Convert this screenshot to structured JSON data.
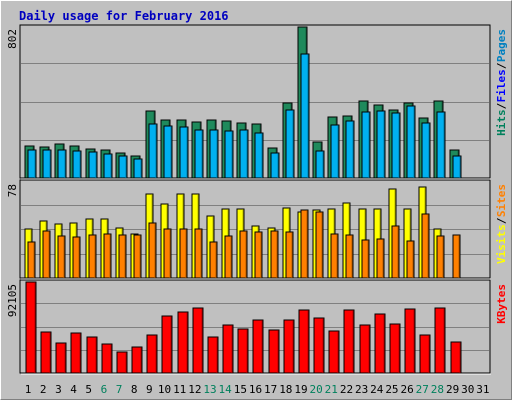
{
  "chart_data": [
    {
      "type": "bar",
      "title": "Daily usage for February 2016",
      "ymax_label": "802",
      "ylim": [
        0,
        802
      ],
      "grid": true,
      "legend_position": "right",
      "legend": [
        {
          "label": "Pages",
          "color": "#0080c0"
        },
        {
          "label": "/",
          "color": "#000000"
        },
        {
          "label": "Files",
          "color": "#0000ff"
        },
        {
          "label": "/",
          "color": "#000000"
        },
        {
          "label": "Hits",
          "color": "#00805c"
        }
      ],
      "series": [
        {
          "name": "Hits",
          "color": "#1f8a5c",
          "values": [
            170,
            165,
            180,
            170,
            155,
            150,
            135,
            115,
            355,
            310,
            310,
            300,
            310,
            305,
            290,
            285,
            160,
            400,
            802,
            190,
            325,
            330,
            410,
            390,
            360,
            400,
            320,
            410,
            150,
            null,
            null
          ]
        },
        {
          "name": "Pages",
          "color": "#00b0f0",
          "values": [
            150,
            148,
            148,
            145,
            138,
            125,
            116,
            100,
            285,
            275,
            270,
            255,
            255,
            250,
            255,
            240,
            135,
            360,
            660,
            145,
            280,
            305,
            350,
            355,
            345,
            380,
            290,
            350,
            115,
            null,
            null
          ]
        }
      ]
    },
    {
      "type": "bar",
      "ymax_label": "78",
      "ylim": [
        0,
        78
      ],
      "grid": true,
      "legend_position": "right",
      "legend": [
        {
          "label": "Sites",
          "color": "#ff8000"
        },
        {
          "label": "/",
          "color": "#000000"
        },
        {
          "label": "Visits",
          "color": "#ffff00"
        }
      ],
      "series": [
        {
          "name": "Visits",
          "color": "#ffff00",
          "values": [
            40,
            46,
            44,
            45,
            48,
            48,
            41,
            36,
            68,
            60,
            68,
            68,
            50,
            56,
            56,
            42,
            41,
            57,
            54,
            55,
            56,
            61,
            56,
            56,
            72,
            56,
            74,
            40,
            null,
            null,
            null
          ]
        },
        {
          "name": "Sites",
          "color": "#ff8000",
          "values": [
            29,
            38,
            34,
            33,
            35,
            36,
            35,
            35,
            45,
            40,
            40,
            40,
            29,
            34,
            38,
            37,
            38,
            37,
            55,
            54,
            36,
            35,
            31,
            32,
            42,
            30,
            52,
            34,
            35,
            null,
            null
          ]
        }
      ]
    },
    {
      "type": "bar",
      "ymax_label": "92105",
      "ylim": [
        0,
        92105
      ],
      "grid": true,
      "legend_position": "right",
      "legend": [
        {
          "label": "KBytes",
          "color": "#ff0000"
        }
      ],
      "series": [
        {
          "name": "KBytes",
          "color": "#ff0000",
          "values": [
            92105,
            42000,
            30000,
            40000,
            36000,
            29000,
            21000,
            26000,
            38000,
            58000,
            62000,
            66000,
            36000,
            49000,
            45000,
            54000,
            44000,
            54000,
            64000,
            56000,
            43000,
            64000,
            49000,
            60000,
            50000,
            65000,
            38000,
            66000,
            31000,
            null,
            null
          ]
        }
      ]
    }
  ],
  "x_axis": {
    "days": [
      "1",
      "2",
      "3",
      "4",
      "5",
      "6",
      "7",
      "8",
      "9",
      "10",
      "11",
      "12",
      "13",
      "14",
      "15",
      "16",
      "17",
      "18",
      "19",
      "20",
      "21",
      "22",
      "23",
      "24",
      "25",
      "26",
      "27",
      "28",
      "29",
      "30",
      "31"
    ],
    "weekend_days": [
      "6",
      "7",
      "13",
      "14",
      "20",
      "21",
      "27",
      "28"
    ],
    "weekday_color": "#000000",
    "weekend_color": "#00805c"
  },
  "colors": {
    "background": "#c0c0c0",
    "title": "#0000c0",
    "grid": "#808080",
    "plot_border": "#000000"
  }
}
